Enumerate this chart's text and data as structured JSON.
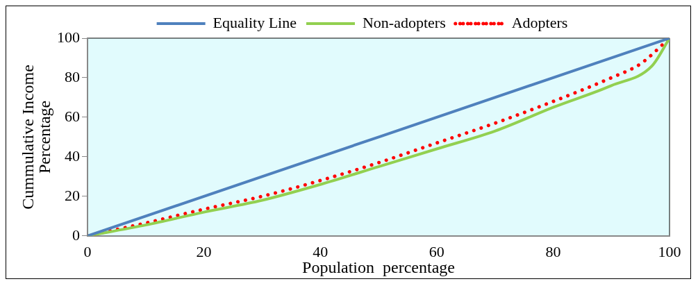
{
  "chart_data": {
    "type": "line",
    "xlabel": "Population  percentage",
    "ylabel": "Cummulative Income Percentage",
    "xlim": [
      0,
      100
    ],
    "ylim": [
      0,
      100
    ],
    "xticks": [
      0,
      20,
      40,
      60,
      80,
      100
    ],
    "yticks": [
      0,
      20,
      40,
      60,
      80,
      100
    ],
    "grid": false,
    "legend": "top",
    "marker": "none",
    "series": [
      {
        "name": "Equality Line",
        "color": "#4f81bd",
        "line_style": "solid",
        "x": [
          0,
          100
        ],
        "values": [
          0,
          100
        ]
      },
      {
        "name": "Non-adopters",
        "color": "#92d050",
        "line_style": "solid",
        "x": [
          0,
          10,
          20,
          30,
          40,
          50,
          60,
          70,
          80,
          90,
          97,
          100
        ],
        "values": [
          0,
          5.5,
          12,
          18,
          26,
          35,
          44,
          53,
          65,
          76,
          86,
          100
        ]
      },
      {
        "name": "Adopters",
        "color": "#ff0000",
        "line_style": "dotted",
        "x": [
          0,
          10,
          20,
          30,
          40,
          50,
          60,
          70,
          80,
          90,
          95,
          100
        ],
        "values": [
          0,
          6.5,
          13.5,
          20,
          28,
          37,
          47,
          57,
          68,
          80,
          87,
          100
        ]
      }
    ]
  }
}
